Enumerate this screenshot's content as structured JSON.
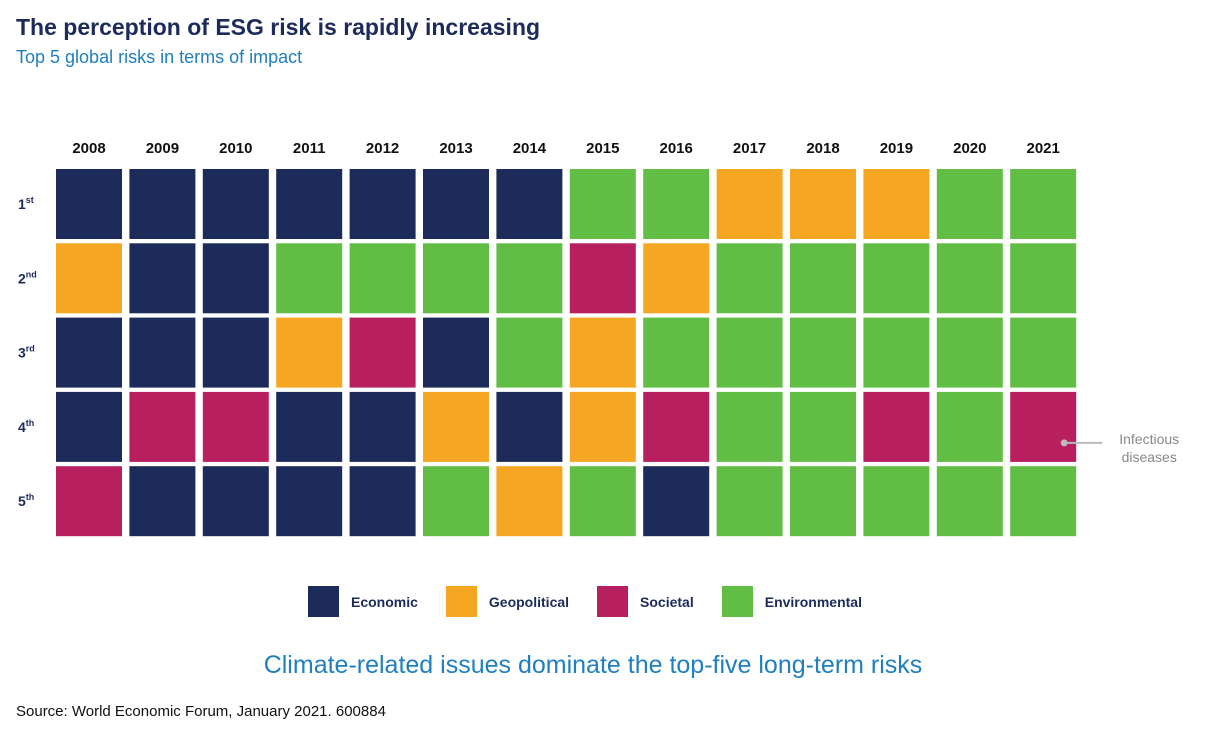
{
  "title": "The perception of ESG risk is rapidly increasing",
  "subtitle": "Top 5 global risks in terms of impact",
  "tagline": "Climate-related issues dominate the top-five long-term risks",
  "source": "Source: World Economic Forum, January 2021. 600884",
  "colors": {
    "Economic": "#1c2b5a",
    "Geopolitical": "#f5a623",
    "Societal": "#b81f5f",
    "Environmental": "#62bd45"
  },
  "legend": [
    {
      "label": "Economic",
      "key": "Economic"
    },
    {
      "label": "Geopolitical",
      "key": "Geopolitical"
    },
    {
      "label": "Societal",
      "key": "Societal"
    },
    {
      "label": "Environmental",
      "key": "Environmental"
    }
  ],
  "chart_data": {
    "type": "heatmap",
    "x": [
      "2008",
      "2009",
      "2010",
      "2011",
      "2012",
      "2013",
      "2014",
      "2015",
      "2016",
      "2017",
      "2018",
      "2019",
      "2020",
      "2021"
    ],
    "y": [
      {
        "num": "1",
        "suffix": "st"
      },
      {
        "num": "2",
        "suffix": "nd"
      },
      {
        "num": "3",
        "suffix": "rd"
      },
      {
        "num": "4",
        "suffix": "th"
      },
      {
        "num": "5",
        "suffix": "th"
      }
    ],
    "categories": [
      "Economic",
      "Geopolitical",
      "Societal",
      "Environmental"
    ],
    "cells": [
      [
        "Economic",
        "Economic",
        "Economic",
        "Economic",
        "Economic",
        "Economic",
        "Economic",
        "Environmental",
        "Environmental",
        "Geopolitical",
        "Geopolitical",
        "Geopolitical",
        "Environmental",
        "Environmental"
      ],
      [
        "Geopolitical",
        "Economic",
        "Economic",
        "Environmental",
        "Environmental",
        "Environmental",
        "Environmental",
        "Societal",
        "Geopolitical",
        "Environmental",
        "Environmental",
        "Environmental",
        "Environmental",
        "Environmental"
      ],
      [
        "Economic",
        "Economic",
        "Economic",
        "Geopolitical",
        "Societal",
        "Economic",
        "Environmental",
        "Geopolitical",
        "Environmental",
        "Environmental",
        "Environmental",
        "Environmental",
        "Environmental",
        "Environmental"
      ],
      [
        "Economic",
        "Societal",
        "Societal",
        "Economic",
        "Economic",
        "Geopolitical",
        "Economic",
        "Geopolitical",
        "Societal",
        "Environmental",
        "Environmental",
        "Societal",
        "Environmental",
        "Societal"
      ],
      [
        "Societal",
        "Economic",
        "Economic",
        "Economic",
        "Economic",
        "Environmental",
        "Geopolitical",
        "Environmental",
        "Economic",
        "Environmental",
        "Environmental",
        "Environmental",
        "Environmental",
        "Environmental"
      ]
    ],
    "annotations": [
      {
        "text_lines": [
          "Infectious",
          "diseases"
        ],
        "year": "2021",
        "rank": "4"
      }
    ],
    "legend_position": "bottom"
  }
}
